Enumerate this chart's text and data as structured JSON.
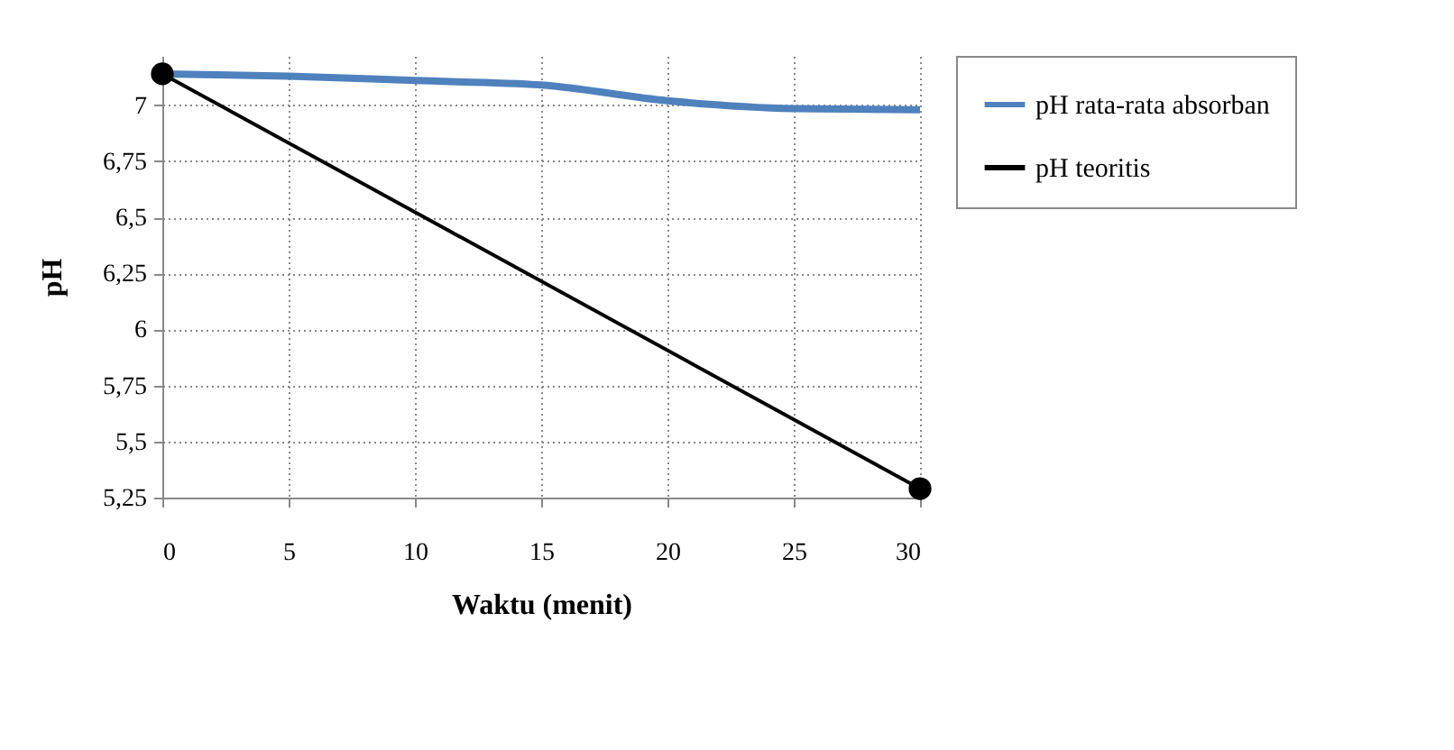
{
  "chart_data": {
    "type": "line",
    "xlabel": "Waktu (menit)",
    "ylabel": "pH",
    "xlim": [
      0,
      30
    ],
    "xticks": [
      0,
      5,
      10,
      15,
      20,
      25,
      30
    ],
    "ylim": [
      5.25,
      7.22
    ],
    "yticks": [
      {
        "value": 5.25,
        "label": "5,25"
      },
      {
        "value": 5.5,
        "label": "5,5"
      },
      {
        "value": 5.75,
        "label": "5,75"
      },
      {
        "value": 6,
        "label": "6"
      },
      {
        "value": 6.25,
        "label": "6,25"
      },
      {
        "value": 6.5,
        "label": "6,5"
      },
      {
        "value": 6.75,
        "label": "6,75"
      },
      {
        "value": 7,
        "label": "7"
      }
    ],
    "grid": true,
    "legend": "right",
    "series": [
      {
        "name": "pH rata-rata absorban",
        "color": "#4f81bd",
        "x": [
          0,
          5,
          10,
          15,
          20,
          25,
          30
        ],
        "values": [
          7.14,
          7.13,
          7.11,
          7.09,
          7.02,
          6.985,
          6.98
        ],
        "marker": "none"
      },
      {
        "name": "pH teoritis",
        "color": "#000000",
        "x": [
          0,
          30
        ],
        "values": [
          7.14,
          5.29
        ],
        "marker": "circle"
      }
    ]
  }
}
